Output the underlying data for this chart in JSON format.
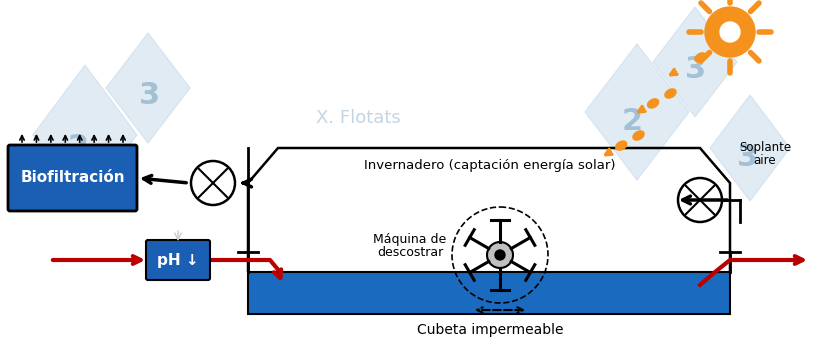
{
  "bg_color": "#ffffff",
  "blue_box": "#1a5fb4",
  "tank_blue": "#1a6bbf",
  "black": "#000000",
  "red": "#bb0000",
  "orange": "#f5921e",
  "wm_color": "#c5d8ea",
  "biofilter_label": "Biofiltración",
  "greenhouse_label": "Invernadero (captación energía solar)",
  "cubeta_label": "Cubeta impermeable",
  "machine_label1": "Máquina de",
  "machine_label2": "descostrar",
  "soplante1": "Soplante",
  "soplante2": "aire",
  "ph_label": "pH ↓",
  "watermark": "X. Flotats",
  "fig_width": 8.2,
  "fig_height": 3.64,
  "dpi": 100
}
